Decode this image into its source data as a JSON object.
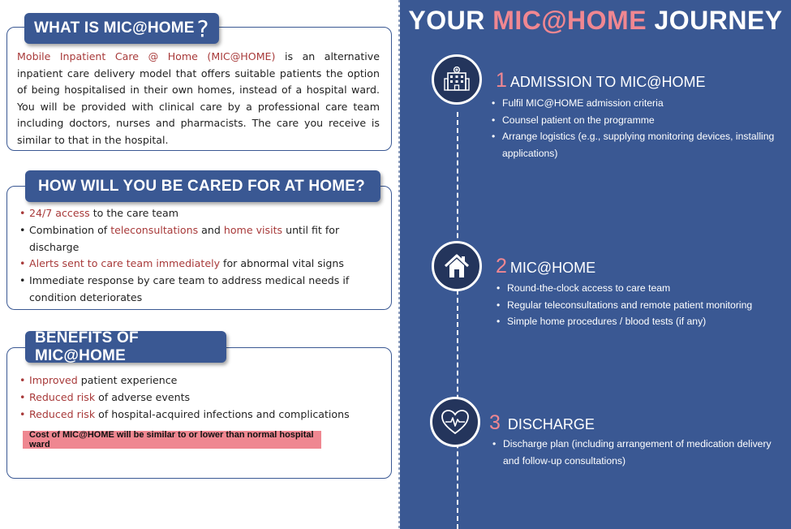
{
  "what_is": {
    "title": "WHAT IS MIC@HOME",
    "title_glyph": "?",
    "para_highlight": "Mobile Inpatient Care @ Home (MIC@HOME)",
    "para_rest": " is an alternative inpatient care delivery model that offers suitable patients the option of being hospitalised in their own homes, instead of a hospital ward. You will be provided with clinical care by a professional care team including doctors, nurses and pharmacists. The care you receive is similar to that in the hospital."
  },
  "cared": {
    "title": "HOW WILL YOU BE CARED FOR AT HOME?",
    "items": [
      {
        "h1": "24/7 access",
        "t1": " to the care team",
        "h2": "",
        "t2": "",
        "red_bullet": true
      },
      {
        "h1": "",
        "t1": "Combination of ",
        "h2": "teleconsultations",
        "t2": " and ",
        "h3": "home visits",
        "t3": " until fit for discharge",
        "red_bullet": false
      },
      {
        "h1": "Alerts sent to care team immediately",
        "t1": " for abnormal vital signs",
        "red_bullet": true
      },
      {
        "h1": "",
        "t1": "Immediate response by care team to address medical needs if condition deteriorates",
        "red_bullet": false
      }
    ]
  },
  "benefits": {
    "title": "BENEFITS OF MIC@HOME",
    "items": [
      {
        "h": "Improved",
        "t": " patient experience"
      },
      {
        "h": "Reduced risk",
        "t": " of adverse events"
      },
      {
        "h": "Reduced risk",
        "t": " of hospital-acquired infections and complications"
      }
    ],
    "cost_note": "Cost of MIC@HOME will be similar to or lower than normal hospital ward"
  },
  "journey": {
    "title_pre": "YOUR ",
    "title_accent": "MIC@HOME",
    "title_post": " JOURNEY",
    "steps": [
      {
        "num": "1",
        "title": "ADMISSION TO MIC@HOME",
        "icon": "hospital-icon",
        "items": [
          "Fulfil MIC@HOME admission criteria",
          "Counsel patient on the programme",
          "Arrange logistics (e.g., supplying monitoring devices, installing applications)"
        ]
      },
      {
        "num": "2",
        "title": "MIC@HOME",
        "icon": "home-icon",
        "items": [
          "Round-the-clock access to care team",
          "Regular teleconsultations and remote patient monitoring",
          "Simple home procedures / blood tests (if any)"
        ]
      },
      {
        "num": "3",
        "title": "DISCHARGE",
        "icon": "heart-pulse-icon",
        "items": [
          "Discharge plan (including arrangement of medication delivery and follow-up consultations)"
        ]
      }
    ]
  },
  "colors": {
    "navy": "#3a5893",
    "accent_red": "#a83a3a",
    "pink": "#f08791"
  }
}
